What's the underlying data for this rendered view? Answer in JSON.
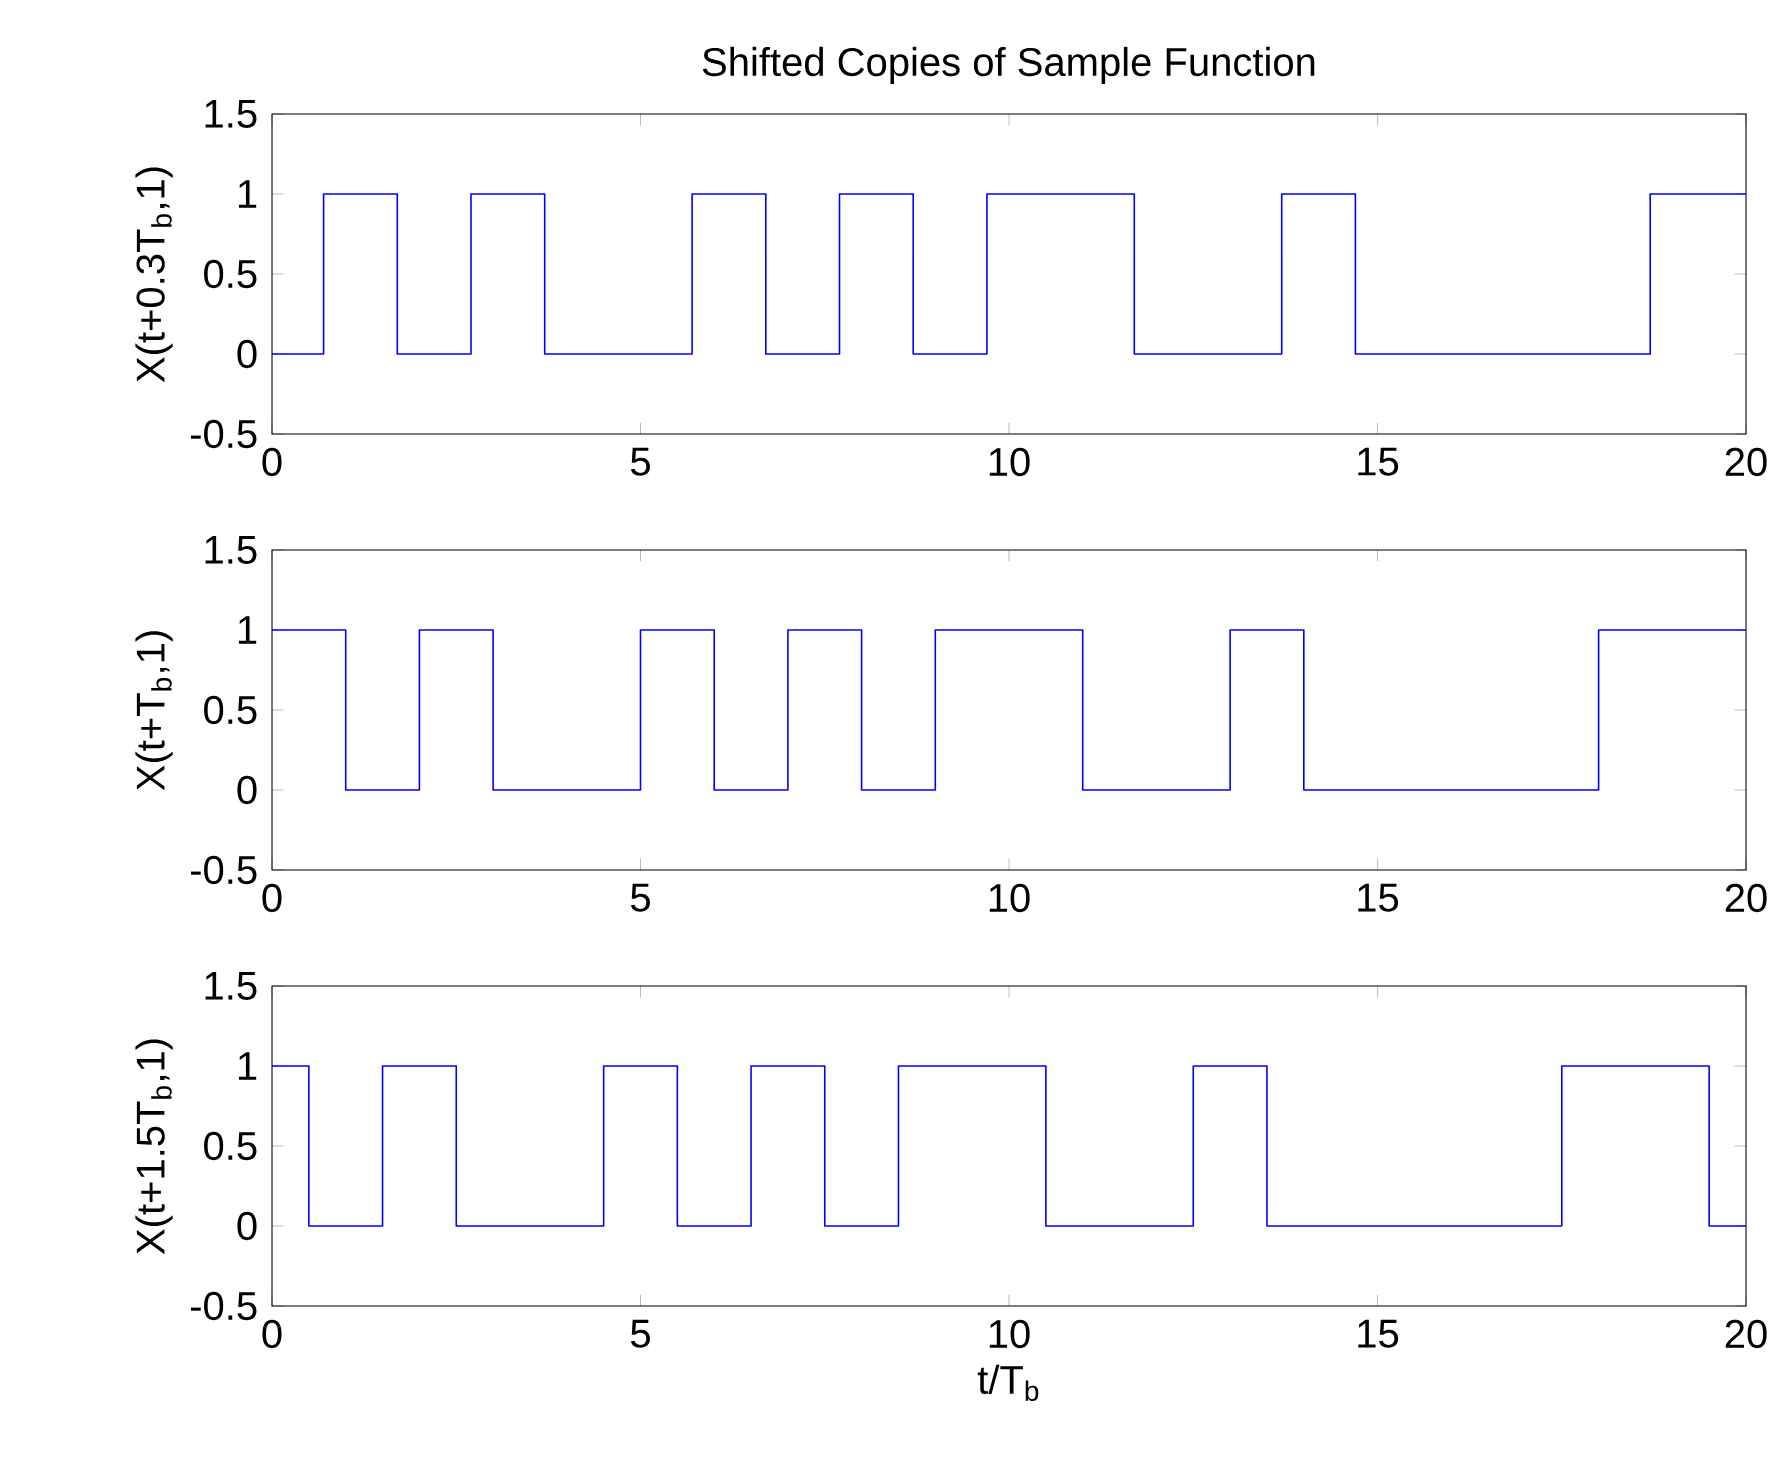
{
  "chart_data": [
    {
      "type": "step",
      "title": "Shifted Copies of Sample Function",
      "ylabel": "X(t+0.3T$_{b}$,1)",
      "x": [
        0,
        0.7,
        1.7,
        2.7,
        3.7,
        5.7,
        6.7,
        7.7,
        8.7,
        9.7,
        11.7,
        13.7,
        14.7,
        18.7,
        20
      ],
      "series": [
        {
          "color": "#0000ff",
          "values": [
            0,
            1,
            0,
            1,
            0,
            1,
            0,
            1,
            0,
            1,
            0,
            1,
            0,
            1,
            1
          ]
        }
      ],
      "xlim": [
        0,
        20
      ],
      "ylim": [
        -0.5,
        1.5
      ],
      "xticks": [
        0,
        5,
        10,
        15,
        20
      ],
      "yticks": [
        -0.5,
        0,
        0.5,
        1,
        1.5
      ],
      "grid": false,
      "line_style": "solid",
      "marker": "none"
    },
    {
      "type": "step",
      "ylabel": "X(t+T$_{b}$,1)",
      "x": [
        0,
        1,
        2,
        3,
        5,
        6,
        7,
        8,
        9,
        11,
        13,
        14,
        18,
        20
      ],
      "series": [
        {
          "color": "#0000ff",
          "values": [
            1,
            0,
            1,
            0,
            1,
            0,
            1,
            0,
            1,
            0,
            1,
            0,
            1,
            1
          ]
        }
      ],
      "xlim": [
        0,
        20
      ],
      "ylim": [
        -0.5,
        1.5
      ],
      "xticks": [
        0,
        5,
        10,
        15,
        20
      ],
      "yticks": [
        -0.5,
        0,
        0.5,
        1,
        1.5
      ],
      "grid": false,
      "line_style": "solid",
      "marker": "none"
    },
    {
      "type": "step",
      "ylabel": "X(t+1.5T$_{b}$,1)",
      "xlabel": "t/T$_{b}$",
      "x": [
        0,
        0.5,
        1.5,
        2.5,
        4.5,
        5.5,
        6.5,
        7.5,
        8.5,
        10.5,
        12.5,
        13.5,
        17.5,
        19.5,
        20
      ],
      "series": [
        {
          "color": "#0000ff",
          "values": [
            1,
            0,
            1,
            0,
            1,
            0,
            1,
            0,
            1,
            0,
            1,
            0,
            1,
            0,
            0
          ]
        }
      ],
      "xlim": [
        0,
        20
      ],
      "ylim": [
        -0.5,
        1.5
      ],
      "xticks": [
        0,
        5,
        10,
        15,
        20
      ],
      "yticks": [
        -0.5,
        0,
        0.5,
        1,
        1.5
      ],
      "grid": false,
      "line_style": "solid",
      "marker": "none"
    }
  ]
}
